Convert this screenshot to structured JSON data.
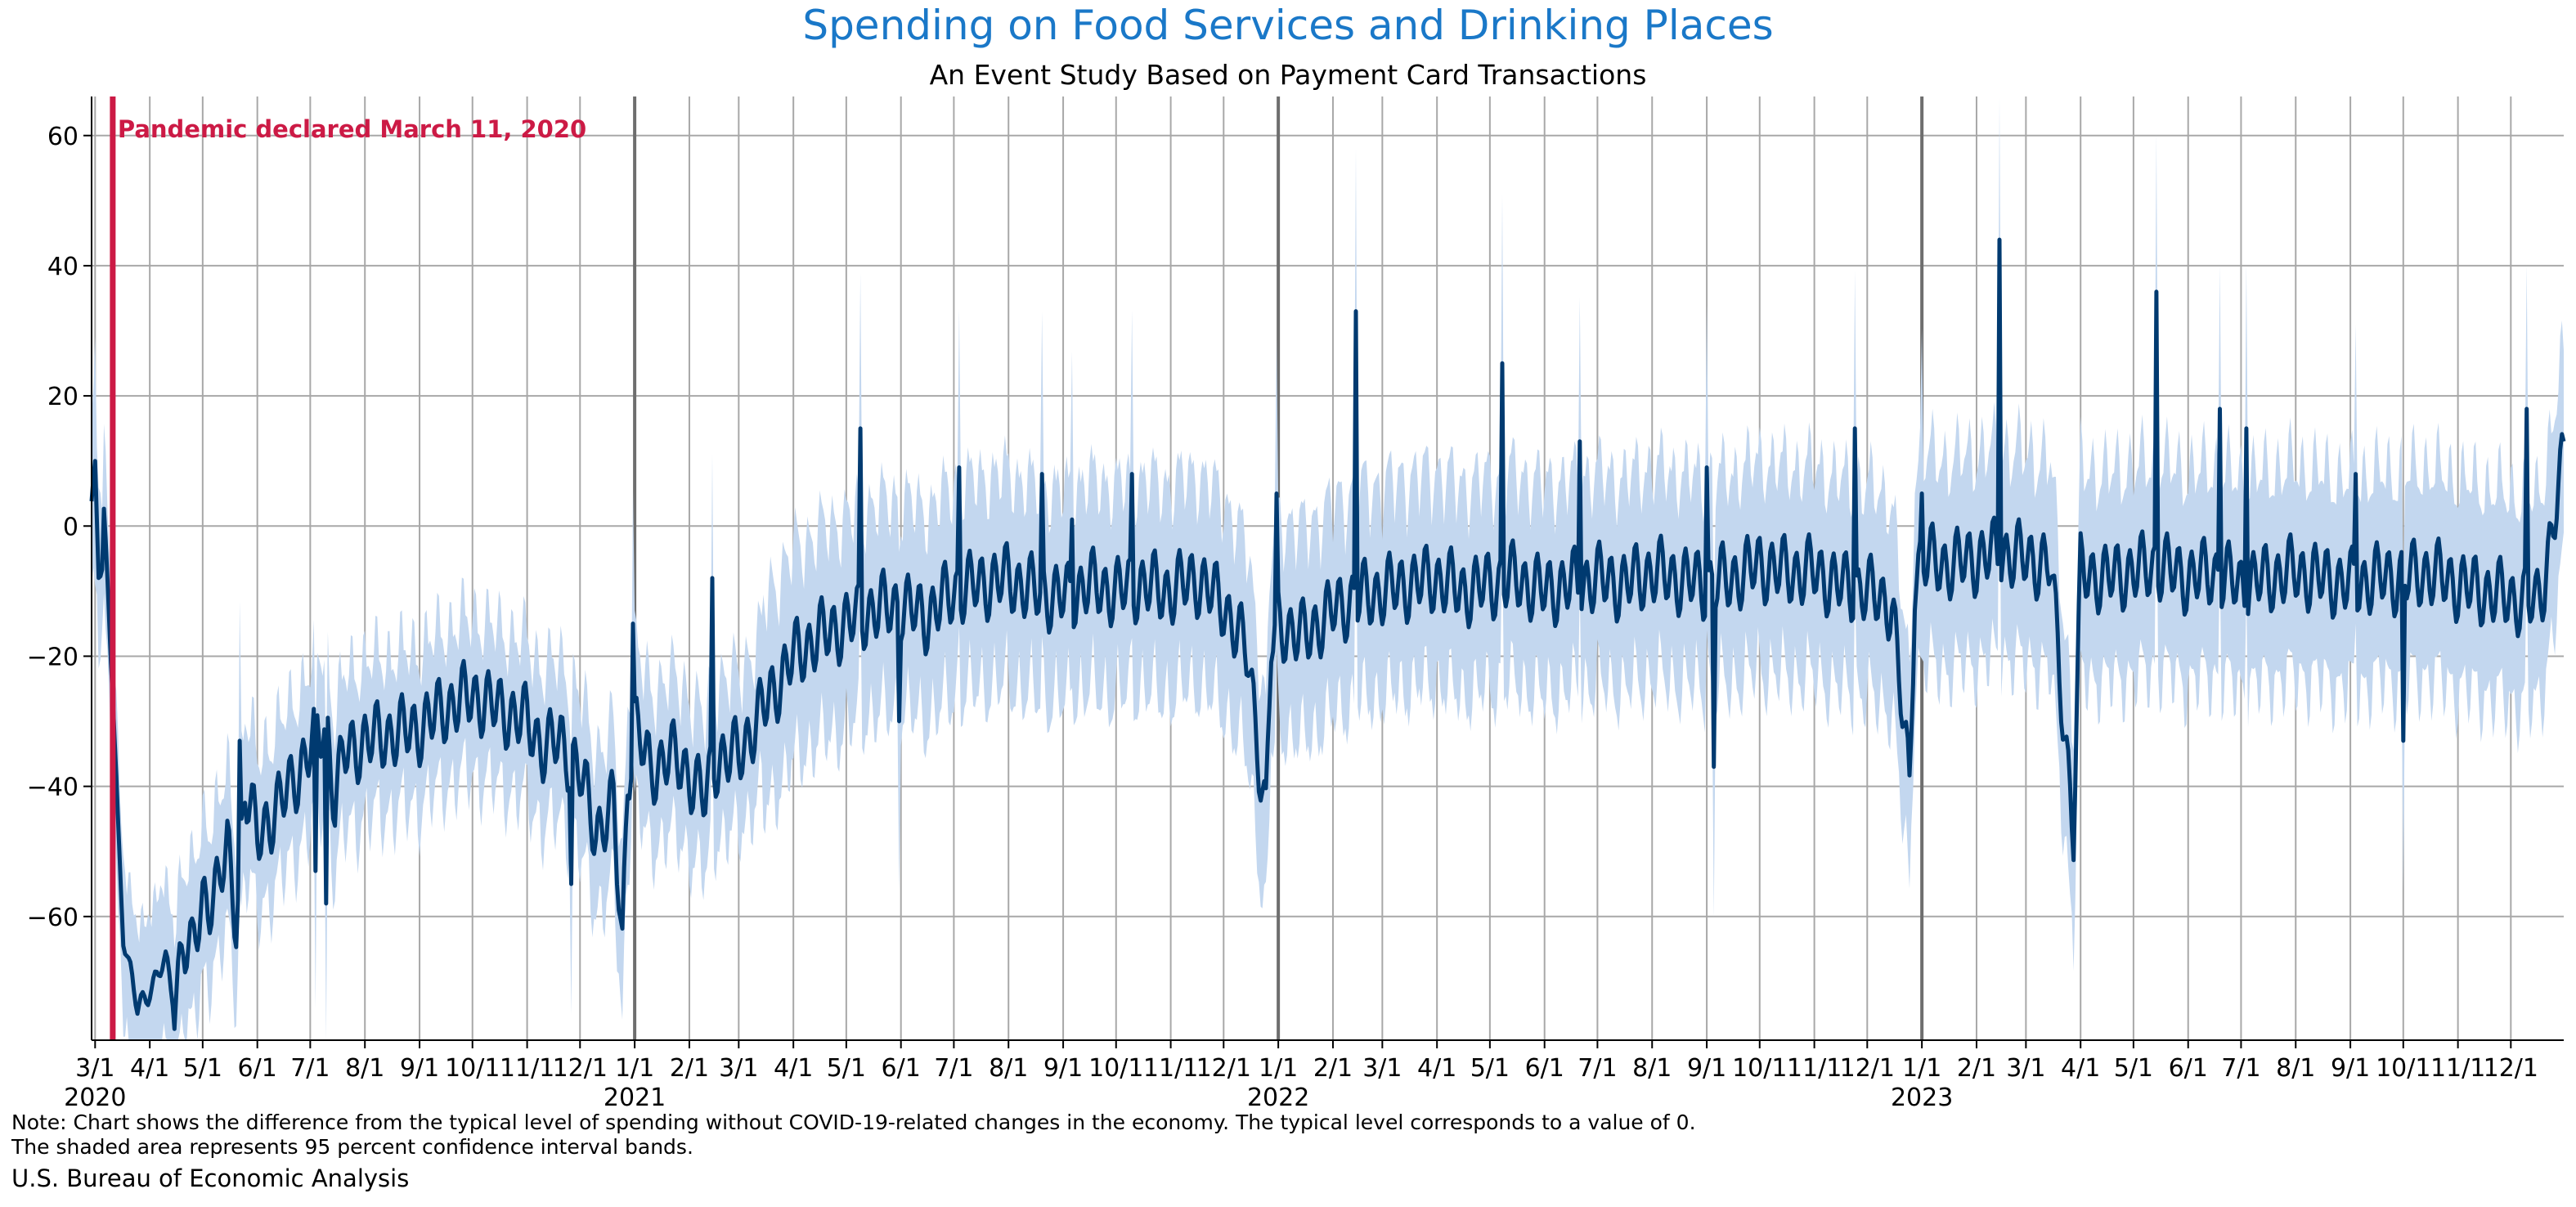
{
  "chart_data": {
    "type": "line",
    "title": "Spending on Food Services and Drinking Places",
    "subtitle": "An Event Study Based on Payment Card Transactions",
    "xlabel": "",
    "ylabel": "",
    "xlim": [
      "2020-02-28",
      "2023-12-31"
    ],
    "ylim": [
      -79,
      66
    ],
    "y_ticks": [
      60,
      40,
      20,
      0,
      -20,
      -40,
      -60
    ],
    "y_tick_labels": [
      "60",
      "40",
      "20",
      "0",
      "−20",
      "−40",
      "−60"
    ],
    "x_ticks": [
      {
        "date": "2020-03-01",
        "label": "3/1",
        "year": "2020"
      },
      {
        "date": "2020-04-01",
        "label": "4/1"
      },
      {
        "date": "2020-05-01",
        "label": "5/1"
      },
      {
        "date": "2020-06-01",
        "label": "6/1"
      },
      {
        "date": "2020-07-01",
        "label": "7/1"
      },
      {
        "date": "2020-08-01",
        "label": "8/1"
      },
      {
        "date": "2020-09-01",
        "label": "9/1"
      },
      {
        "date": "2020-10-01",
        "label": "10/1"
      },
      {
        "date": "2020-11-01",
        "label": "11/1"
      },
      {
        "date": "2020-12-01",
        "label": "12/1"
      },
      {
        "date": "2021-01-01",
        "label": "1/1",
        "year": "2021",
        "major": true
      },
      {
        "date": "2021-02-01",
        "label": "2/1"
      },
      {
        "date": "2021-03-01",
        "label": "3/1"
      },
      {
        "date": "2021-04-01",
        "label": "4/1"
      },
      {
        "date": "2021-05-01",
        "label": "5/1"
      },
      {
        "date": "2021-06-01",
        "label": "6/1"
      },
      {
        "date": "2021-07-01",
        "label": "7/1"
      },
      {
        "date": "2021-08-01",
        "label": "8/1"
      },
      {
        "date": "2021-09-01",
        "label": "9/1"
      },
      {
        "date": "2021-10-01",
        "label": "10/1"
      },
      {
        "date": "2021-11-01",
        "label": "11/1"
      },
      {
        "date": "2021-12-01",
        "label": "12/1"
      },
      {
        "date": "2022-01-01",
        "label": "1/1",
        "year": "2022",
        "major": true
      },
      {
        "date": "2022-02-01",
        "label": "2/1"
      },
      {
        "date": "2022-03-01",
        "label": "3/1"
      },
      {
        "date": "2022-04-01",
        "label": "4/1"
      },
      {
        "date": "2022-05-01",
        "label": "5/1"
      },
      {
        "date": "2022-06-01",
        "label": "6/1"
      },
      {
        "date": "2022-07-01",
        "label": "7/1"
      },
      {
        "date": "2022-08-01",
        "label": "8/1"
      },
      {
        "date": "2022-09-01",
        "label": "9/1"
      },
      {
        "date": "2022-10-01",
        "label": "10/1"
      },
      {
        "date": "2022-11-01",
        "label": "11/1"
      },
      {
        "date": "2022-12-01",
        "label": "12/1"
      },
      {
        "date": "2023-01-01",
        "label": "1/1",
        "year": "2023",
        "major": true
      },
      {
        "date": "2023-02-01",
        "label": "2/1"
      },
      {
        "date": "2023-03-01",
        "label": "3/1"
      },
      {
        "date": "2023-04-01",
        "label": "4/1"
      },
      {
        "date": "2023-05-01",
        "label": "5/1"
      },
      {
        "date": "2023-06-01",
        "label": "6/1"
      },
      {
        "date": "2023-07-01",
        "label": "7/1"
      },
      {
        "date": "2023-08-01",
        "label": "8/1"
      },
      {
        "date": "2023-09-01",
        "label": "9/1"
      },
      {
        "date": "2023-10-01",
        "label": "10/1"
      },
      {
        "date": "2023-11-01",
        "label": "11/1"
      },
      {
        "date": "2023-12-01",
        "label": "12/1"
      }
    ],
    "grid": true,
    "annotation": {
      "date": "2020-03-11",
      "text": "Pandemic declared March 11, 2020",
      "color": "#cc1a45"
    },
    "series": [
      {
        "line_color": "#003a70",
        "band_color": "#c3d7ef",
        "band": "95 percent confidence interval",
        "points": [
          [
            "2020-02-28",
            4
          ],
          [
            "2020-03-01",
            10
          ],
          [
            "2020-03-03",
            -7
          ],
          [
            "2020-03-05",
            -8
          ],
          [
            "2020-03-06",
            0
          ],
          [
            "2020-03-08",
            -10
          ],
          [
            "2020-03-11",
            -25
          ],
          [
            "2020-03-14",
            -45
          ],
          [
            "2020-03-17",
            -62
          ],
          [
            "2020-03-20",
            -68
          ],
          [
            "2020-03-25",
            -75
          ],
          [
            "2020-04-01",
            -70
          ],
          [
            "2020-04-10",
            -68
          ],
          [
            "2020-04-15",
            -73
          ],
          [
            "2020-04-20",
            -63
          ],
          [
            "2020-04-25",
            -66
          ],
          [
            "2020-05-01",
            -58
          ],
          [
            "2020-05-10",
            -55
          ],
          [
            "2020-05-15",
            -50
          ],
          [
            "2020-05-20",
            -60
          ],
          [
            "2020-05-25",
            -40
          ],
          [
            "2020-06-01",
            -48
          ],
          [
            "2020-06-10",
            -44
          ],
          [
            "2020-06-20",
            -40
          ],
          [
            "2020-07-01",
            -34
          ],
          [
            "2020-07-10",
            -30
          ],
          [
            "2020-07-15",
            -42
          ],
          [
            "2020-07-20",
            -35
          ],
          [
            "2020-08-01",
            -33
          ],
          [
            "2020-08-15",
            -32
          ],
          [
            "2020-09-01",
            -31
          ],
          [
            "2020-09-15",
            -28
          ],
          [
            "2020-10-01",
            -26
          ],
          [
            "2020-10-15",
            -28
          ],
          [
            "2020-11-01",
            -30
          ],
          [
            "2020-11-10",
            -34
          ],
          [
            "2020-11-20",
            -33
          ],
          [
            "2020-12-01",
            -38
          ],
          [
            "2020-12-10",
            -47
          ],
          [
            "2020-12-20",
            -43
          ],
          [
            "2020-12-25",
            -65
          ],
          [
            "2020-12-28",
            -38
          ],
          [
            "2021-01-01",
            -30
          ],
          [
            "2021-01-10",
            -38
          ],
          [
            "2021-01-20",
            -35
          ],
          [
            "2021-02-01",
            -38
          ],
          [
            "2021-02-10",
            -42
          ],
          [
            "2021-02-15",
            -36
          ],
          [
            "2021-03-01",
            -35
          ],
          [
            "2021-03-15",
            -28
          ],
          [
            "2021-04-01",
            -20
          ],
          [
            "2021-04-15",
            -17
          ],
          [
            "2021-05-01",
            -15
          ],
          [
            "2021-05-15",
            -13
          ],
          [
            "2021-06-01",
            -12
          ],
          [
            "2021-06-15",
            -14
          ],
          [
            "2021-07-01",
            -10
          ],
          [
            "2021-07-15",
            -9
          ],
          [
            "2021-08-01",
            -8
          ],
          [
            "2021-08-15",
            -10
          ],
          [
            "2021-09-01",
            -11
          ],
          [
            "2021-09-15",
            -9
          ],
          [
            "2021-10-01",
            -10
          ],
          [
            "2021-10-15",
            -9
          ],
          [
            "2021-11-01",
            -10
          ],
          [
            "2021-11-15",
            -8
          ],
          [
            "2021-12-01",
            -12
          ],
          [
            "2021-12-15",
            -20
          ],
          [
            "2021-12-25",
            -45
          ],
          [
            "2021-12-28",
            -18
          ],
          [
            "2022-01-01",
            -15
          ],
          [
            "2022-01-15",
            -17
          ],
          [
            "2022-02-01",
            -13
          ],
          [
            "2022-02-15",
            -11
          ],
          [
            "2022-03-01",
            -10
          ],
          [
            "2022-03-15",
            -9
          ],
          [
            "2022-04-01",
            -8
          ],
          [
            "2022-04-15",
            -10
          ],
          [
            "2022-05-01",
            -9
          ],
          [
            "2022-05-15",
            -8
          ],
          [
            "2022-06-01",
            -10
          ],
          [
            "2022-06-15",
            -9
          ],
          [
            "2022-07-01",
            -8
          ],
          [
            "2022-07-15",
            -9
          ],
          [
            "2022-08-01",
            -7
          ],
          [
            "2022-08-15",
            -8
          ],
          [
            "2022-09-01",
            -9
          ],
          [
            "2022-09-15",
            -8
          ],
          [
            "2022-10-01",
            -6
          ],
          [
            "2022-10-15",
            -7
          ],
          [
            "2022-11-01",
            -7
          ],
          [
            "2022-11-15",
            -9
          ],
          [
            "2022-12-01",
            -10
          ],
          [
            "2022-12-15",
            -12
          ],
          [
            "2022-12-25",
            -40
          ],
          [
            "2022-12-28",
            -8
          ],
          [
            "2023-01-01",
            -5
          ],
          [
            "2023-01-15",
            -6
          ],
          [
            "2023-02-01",
            -5
          ],
          [
            "2023-02-15",
            -4
          ],
          [
            "2023-03-01",
            -5
          ],
          [
            "2023-03-15",
            -6
          ],
          [
            "2023-03-28",
            -47
          ],
          [
            "2023-04-01",
            -7
          ],
          [
            "2023-04-15",
            -8
          ],
          [
            "2023-05-01",
            -7
          ],
          [
            "2023-05-15",
            -6
          ],
          [
            "2023-06-01",
            -8
          ],
          [
            "2023-06-15",
            -7
          ],
          [
            "2023-07-01",
            -9
          ],
          [
            "2023-07-15",
            -8
          ],
          [
            "2023-08-01",
            -7
          ],
          [
            "2023-08-15",
            -8
          ],
          [
            "2023-09-01",
            -9
          ],
          [
            "2023-09-15",
            -8
          ],
          [
            "2023-10-01",
            -8
          ],
          [
            "2023-10-15",
            -7
          ],
          [
            "2023-11-01",
            -9
          ],
          [
            "2023-11-15",
            -10
          ],
          [
            "2023-12-01",
            -11
          ],
          [
            "2023-12-15",
            -12
          ],
          [
            "2023-12-20",
            -8
          ],
          [
            "2023-12-31",
            10
          ]
        ],
        "spikes": [
          [
            "2020-03-01",
            10
          ],
          [
            "2020-05-22",
            -33
          ],
          [
            "2020-07-04",
            -53
          ],
          [
            "2020-07-10",
            -58
          ],
          [
            "2020-11-26",
            -55
          ],
          [
            "2020-12-31",
            -15
          ],
          [
            "2021-02-14",
            -8
          ],
          [
            "2021-05-09",
            15
          ],
          [
            "2021-05-31",
            -30
          ],
          [
            "2021-07-04",
            9
          ],
          [
            "2021-08-20",
            8
          ],
          [
            "2021-09-06",
            1
          ],
          [
            "2021-10-10",
            8
          ],
          [
            "2021-12-31",
            5
          ],
          [
            "2022-02-14",
            33
          ],
          [
            "2022-05-08",
            25
          ],
          [
            "2022-06-21",
            13
          ],
          [
            "2022-09-05",
            -37
          ],
          [
            "2022-09-01",
            9
          ],
          [
            "2022-11-24",
            15
          ],
          [
            "2023-01-01",
            5
          ],
          [
            "2023-02-14",
            44
          ],
          [
            "2023-05-14",
            36
          ],
          [
            "2023-06-19",
            18
          ],
          [
            "2023-07-04",
            15
          ],
          [
            "2023-09-04",
            8
          ],
          [
            "2023-10-01",
            -33
          ],
          [
            "2023-12-10",
            18
          ]
        ]
      }
    ]
  },
  "note_line1": "Note: Chart shows the difference from the typical level of spending without COVID-19-related changes in the economy. The typical level corresponds to a value of 0.",
  "note_line2": "The shaded area represents 95 percent confidence interval bands.",
  "source": "U.S. Bureau of Economic Analysis"
}
